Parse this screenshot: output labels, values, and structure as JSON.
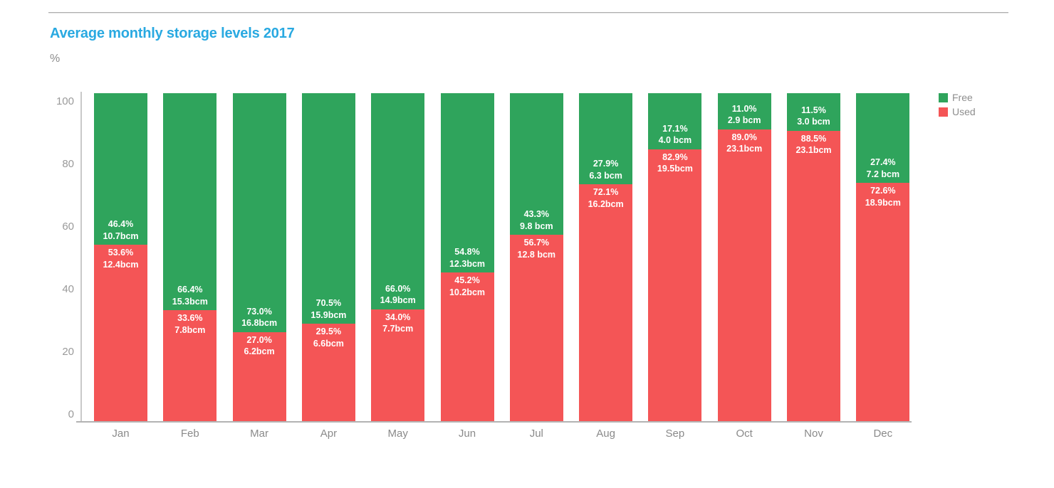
{
  "page": {
    "title": "Average monthly storage levels 2017",
    "y_axis_unit_label": "%"
  },
  "colors": {
    "title": "#29a9e1",
    "free": "#2fa45c",
    "used": "#f45556",
    "axis_text": "#9a9a9a",
    "label_text": "#ffffff"
  },
  "chart_data": {
    "type": "bar",
    "stacked": true,
    "title": "Average monthly storage levels 2017",
    "xlabel": "",
    "ylabel": "%",
    "ylim": [
      0,
      100
    ],
    "y_ticks": [
      0,
      20,
      40,
      60,
      80,
      100
    ],
    "grid": false,
    "legend_position": "top-right",
    "categories": [
      "Jan",
      "Feb",
      "Mar",
      "Apr",
      "May",
      "Jun",
      "Jul",
      "Aug",
      "Sep",
      "Oct",
      "Nov",
      "Dec"
    ],
    "series": [
      {
        "name": "Free",
        "color": "#2fa45c",
        "unit": "%",
        "values_pct": [
          46.4,
          66.4,
          73.0,
          70.5,
          66.0,
          54.8,
          43.3,
          27.9,
          17.1,
          11.0,
          11.5,
          27.4
        ],
        "values_bcm": [
          10.7,
          15.3,
          16.8,
          15.9,
          14.9,
          12.3,
          9.8,
          6.3,
          4.0,
          2.9,
          3.0,
          7.2
        ],
        "pct_labels": [
          "46.4%",
          "66.4%",
          "73.0%",
          "70.5%",
          "66.0%",
          "54.8%",
          "43.3%",
          "27.9%",
          "17.1%",
          "11.0%",
          "11.5%",
          "27.4%"
        ],
        "volume_labels": [
          "10.7bcm",
          "15.3bcm",
          "16.8bcm",
          "15.9bcm",
          "14.9bcm",
          "12.3bcm",
          "9.8 bcm",
          "6.3 bcm",
          "4.0 bcm",
          "2.9 bcm",
          "3.0 bcm",
          "7.2 bcm"
        ]
      },
      {
        "name": "Used",
        "color": "#f45556",
        "unit": "%",
        "values_pct": [
          53.6,
          33.6,
          27.0,
          29.5,
          34.0,
          45.2,
          56.7,
          72.1,
          82.9,
          89.0,
          88.5,
          72.6
        ],
        "values_bcm": [
          12.4,
          7.8,
          6.2,
          6.6,
          7.7,
          10.2,
          12.8,
          16.2,
          19.5,
          23.1,
          23.1,
          18.9
        ],
        "pct_labels": [
          "53.6%",
          "33.6%",
          "27.0%",
          "29.5%",
          "34.0%",
          "45.2%",
          "56.7%",
          "72.1%",
          "82.9%",
          "89.0%",
          "88.5%",
          "72.6%"
        ],
        "volume_labels": [
          "12.4bcm",
          "7.8bcm",
          "6.2bcm",
          "6.6bcm",
          "7.7bcm",
          "10.2bcm",
          "12.8 bcm",
          "16.2bcm",
          "19.5bcm",
          "23.1bcm",
          "23.1bcm",
          "18.9bcm"
        ]
      }
    ],
    "legend": [
      {
        "label": "Free",
        "color": "#2fa45c"
      },
      {
        "label": "Used",
        "color": "#f45556"
      }
    ]
  }
}
